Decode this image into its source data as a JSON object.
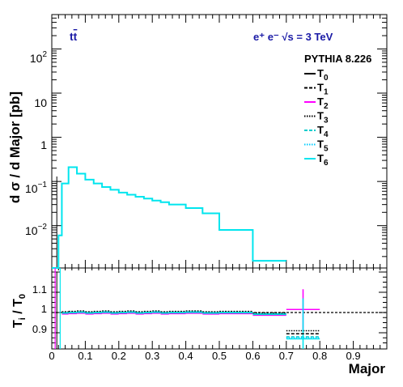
{
  "chart_data": [
    {
      "type": "line",
      "title": "",
      "xlabel": "Major",
      "ylabel": "d σ / d Major [pb]",
      "yscale": "log",
      "xlim": [
        0,
        1
      ],
      "ylim": [
        0.0011,
        600
      ],
      "xticks": [
        "0",
        "0.1",
        "0.2",
        "0.3",
        "0.4",
        "0.5",
        "0.6",
        "0.7",
        "0.8",
        "0.9"
      ],
      "yticks": [
        {
          "base": "10",
          "exp": "2",
          "value": 100
        },
        {
          "base": "10",
          "exp": "",
          "value": 10
        },
        {
          "base": "1",
          "exp": "",
          "value": 1
        },
        {
          "base": "10",
          "exp": "−1",
          "value": 0.1
        },
        {
          "base": "10",
          "exp": "−2",
          "value": 0.01
        }
      ],
      "annotations": {
        "process": "tt̄",
        "beam": "e⁺ e⁻  √s = 3 TeV",
        "generator": "PYTHIA 8.226"
      },
      "legend": {
        "placement": "top-right",
        "entries": [
          {
            "main": "T",
            "sub": "0",
            "color": "#000000",
            "style": "solid"
          },
          {
            "main": "T",
            "sub": "1",
            "color": "#000000",
            "style": "dashed"
          },
          {
            "main": "T",
            "sub": "2",
            "color": "#ff00ff",
            "style": "solid"
          },
          {
            "main": "T",
            "sub": "3",
            "color": "#000000",
            "style": "dotted"
          },
          {
            "main": "T",
            "sub": "4",
            "color": "#00cccc",
            "style": "dashed"
          },
          {
            "main": "T",
            "sub": "5",
            "color": "#00ccff",
            "style": "dotted"
          },
          {
            "main": "T",
            "sub": "6",
            "color": "#00e5ee",
            "style": "solid"
          }
        ]
      },
      "bins": [
        {
          "x0": 0.0,
          "x1": 0.01,
          "y": 0.0
        },
        {
          "x0": 0.01,
          "x1": 0.02,
          "y": 0.0
        },
        {
          "x0": 0.02,
          "x1": 0.03,
          "y": 0.006
        },
        {
          "x0": 0.03,
          "x1": 0.05,
          "y": 0.09
        },
        {
          "x0": 0.05,
          "x1": 0.075,
          "y": 0.21
        },
        {
          "x0": 0.075,
          "x1": 0.1,
          "y": 0.15
        },
        {
          "x0": 0.1,
          "x1": 0.125,
          "y": 0.11
        },
        {
          "x0": 0.125,
          "x1": 0.15,
          "y": 0.09
        },
        {
          "x0": 0.15,
          "x1": 0.175,
          "y": 0.075
        },
        {
          "x0": 0.175,
          "x1": 0.2,
          "y": 0.065
        },
        {
          "x0": 0.2,
          "x1": 0.225,
          "y": 0.056
        },
        {
          "x0": 0.225,
          "x1": 0.25,
          "y": 0.05
        },
        {
          "x0": 0.25,
          "x1": 0.275,
          "y": 0.045
        },
        {
          "x0": 0.275,
          "x1": 0.3,
          "y": 0.041
        },
        {
          "x0": 0.3,
          "x1": 0.325,
          "y": 0.037
        },
        {
          "x0": 0.325,
          "x1": 0.35,
          "y": 0.034
        },
        {
          "x0": 0.35,
          "x1": 0.4,
          "y": 0.03
        },
        {
          "x0": 0.4,
          "x1": 0.45,
          "y": 0.025
        },
        {
          "x0": 0.45,
          "x1": 0.5,
          "y": 0.019
        },
        {
          "x0": 0.5,
          "x1": 0.6,
          "y": 0.008
        },
        {
          "x0": 0.6,
          "x1": 0.7,
          "y": 0.0016
        }
      ],
      "series_color": "#00e5ee",
      "grid": false
    },
    {
      "type": "line",
      "title": "",
      "xlabel": "Major",
      "ylabel": "Tᵢ / T₀",
      "ylabel_main": "T",
      "ylabel_sub": "i",
      "ylabel_rest": " / T",
      "ylabel_sub2": "0",
      "xlim": [
        0,
        1
      ],
      "ylim": [
        0.82,
        1.22
      ],
      "xticks": [
        "0",
        "0.1",
        "0.2",
        "0.3",
        "0.4",
        "0.5",
        "0.6",
        "0.7",
        "0.8",
        "0.9"
      ],
      "yticks": [
        "0.9",
        "1",
        "1.1"
      ],
      "reference_line": 1,
      "series": [
        {
          "name": "T2",
          "color": "#ff00ff",
          "style": "solid",
          "values": [
            [
              0.75,
              1.015,
              0.1
            ]
          ]
        },
        {
          "name": "T3",
          "color": "#000000",
          "style": "dotted",
          "values": [
            [
              0.75,
              0.91,
              0
            ]
          ]
        },
        {
          "name": "T4",
          "color": "#00cccc",
          "style": "dashed",
          "values": [
            [
              0.75,
              0.88,
              0
            ]
          ]
        },
        {
          "name": "T5",
          "color": "#00ccff",
          "style": "dotted",
          "values": [
            [
              0.75,
              0.875,
              0
            ]
          ]
        },
        {
          "name": "T6",
          "color": "#00e5ee",
          "style": "solid",
          "values": [
            [
              0.75,
              0.87,
              0.2
            ]
          ]
        },
        {
          "name": "T1",
          "color": "#000000",
          "style": "dashed",
          "values": [
            [
              0.75,
              0.895,
              0
            ]
          ]
        }
      ],
      "ratio_band": {
        "x0": 0.03,
        "x1": 0.7,
        "low": 0.975,
        "high": 1.01
      }
    }
  ]
}
